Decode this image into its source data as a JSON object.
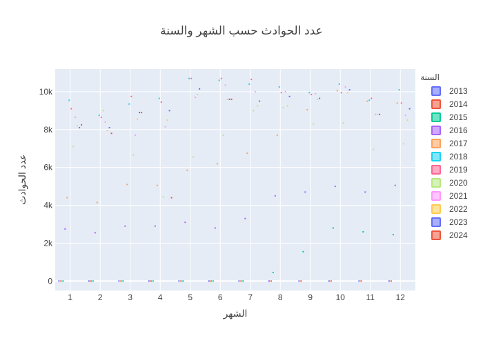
{
  "chart_data": {
    "type": "scatter",
    "title": "عدد الحوادث حسب الشهر والسنة",
    "xlabel": "الشهر",
    "ylabel": "عدد الحوادث",
    "xlim": [
      0.5,
      12.5
    ],
    "ylim": [
      -500,
      11200
    ],
    "x_ticks": [
      "1",
      "2",
      "3",
      "4",
      "5",
      "6",
      "7",
      "8",
      "9",
      "10",
      "11",
      "12"
    ],
    "y_ticks": [
      {
        "value": 0,
        "label": "0"
      },
      {
        "value": 2000,
        "label": "2k"
      },
      {
        "value": 4000,
        "label": "4k"
      },
      {
        "value": 6000,
        "label": "6k"
      },
      {
        "value": 8000,
        "label": "8k"
      },
      {
        "value": 10000,
        "label": "10k"
      }
    ],
    "grid": true,
    "legend_title": "السنة",
    "legend_position": "right",
    "series": [
      {
        "name": "2013",
        "color": "#636efa",
        "values": [
          0,
          0,
          0,
          0,
          0,
          0,
          0,
          0,
          0,
          0,
          0,
          0
        ]
      },
      {
        "name": "2014",
        "color": "#ef553b",
        "values": [
          0,
          0,
          0,
          0,
          0,
          0,
          0,
          0,
          0,
          0,
          0,
          0
        ]
      },
      {
        "name": "2015",
        "color": "#00cc96",
        "values": [
          0,
          0,
          0,
          0,
          0,
          0,
          0,
          450,
          1550,
          2800,
          2600,
          2450
        ]
      },
      {
        "name": "2016",
        "color": "#ab63fa",
        "values": [
          2750,
          2550,
          2900,
          2900,
          3100,
          2800,
          3300,
          4500,
          4700,
          5000,
          4700,
          5050
        ]
      },
      {
        "name": "2017",
        "color": "#ffa15a",
        "values": [
          4400,
          4150,
          5100,
          5050,
          5850,
          6200,
          6750,
          7700,
          9050,
          10050,
          9500,
          9400
        ]
      },
      {
        "name": "2018",
        "color": "#19d3f3",
        "values": [
          9550,
          8750,
          9350,
          9650,
          10700,
          10600,
          10400,
          10250,
          9950,
          10400,
          9550,
          10100
        ]
      },
      {
        "name": "2019",
        "color": "#ff6692",
        "values": [
          9100,
          8650,
          9750,
          9450,
          10700,
          10700,
          10650,
          9950,
          9850,
          9950,
          9650,
          9400
        ]
      },
      {
        "name": "2020",
        "color": "#b6e880",
        "values": [
          7100,
          9000,
          6650,
          4450,
          6550,
          7700,
          9000,
          9150,
          8300,
          8350,
          6950,
          7250
        ]
      },
      {
        "name": "2021",
        "color": "#ff97ff",
        "values": [
          8650,
          8400,
          7700,
          8150,
          9700,
          10350,
          10000,
          10000,
          9900,
          10250,
          8800,
          8750
        ]
      },
      {
        "name": "2022",
        "color": "#fecb52",
        "values": [
          8200,
          7950,
          8550,
          8500,
          9850,
          9600,
          9250,
          9250,
          9600,
          9950,
          8800,
          8500
        ]
      },
      {
        "name": "2023",
        "color": "#636efa",
        "values": [
          8100,
          8100,
          8900,
          9000,
          10150,
          9600,
          9500,
          9750,
          9650,
          10100,
          8800,
          9100
        ]
      },
      {
        "name": "2024",
        "color": "#ef553b",
        "values": [
          8250,
          7800,
          8900,
          4400,
          null,
          9600,
          null,
          null,
          null,
          null,
          null,
          null
        ]
      }
    ]
  }
}
